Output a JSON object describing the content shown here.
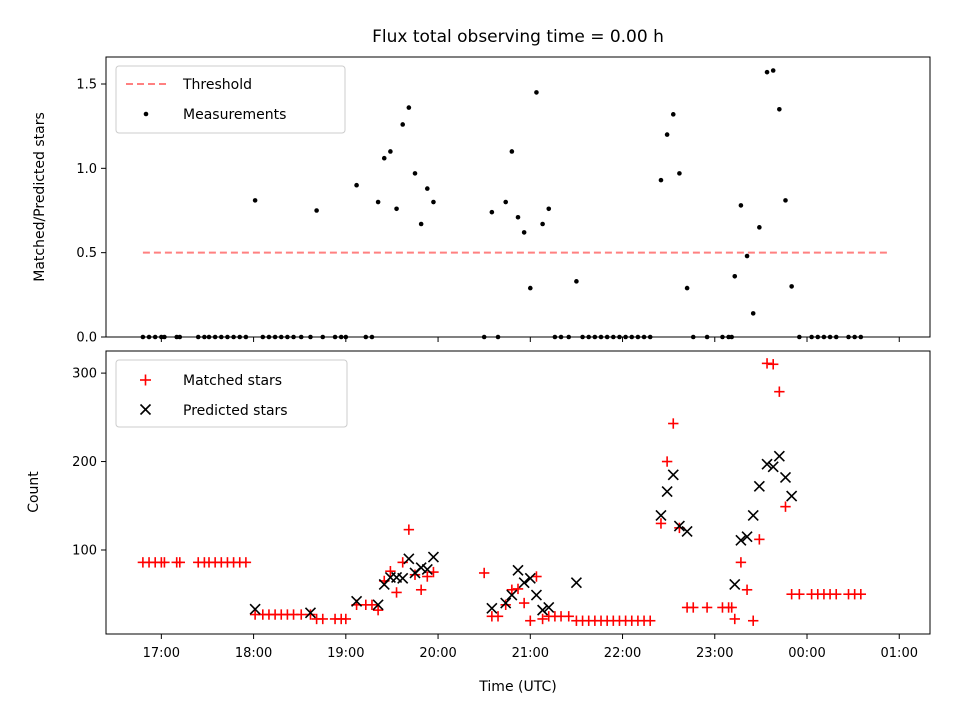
{
  "chart_data": [
    {
      "type": "scatter",
      "title": "Flux total observing time = 0.00 h",
      "ylabel": "Matched/Predicted stars",
      "xlim": [
        "16:24",
        "01:20"
      ],
      "ylim": [
        0,
        1.66
      ],
      "yticks": [
        0.0,
        0.5,
        1.0,
        1.5
      ],
      "ytick_labels": [
        "0.0",
        "0.5",
        "1.0",
        "1.5"
      ],
      "legend": {
        "position": "upper-left",
        "entries": [
          "Threshold",
          "Measurements"
        ]
      },
      "threshold": {
        "name": "Threshold",
        "y": 0.5,
        "x_start": "16:48",
        "x_end": "00:52",
        "color": "#ff8080"
      },
      "series": [
        {
          "name": "Measurements",
          "color": "#000000",
          "points": [
            [
              "16:48",
              0
            ],
            [
              "16:52",
              0
            ],
            [
              "16:56",
              0
            ],
            [
              "17:00",
              0
            ],
            [
              "17:02",
              0
            ],
            [
              "17:10",
              0
            ],
            [
              "17:12",
              0
            ],
            [
              "17:24",
              0
            ],
            [
              "17:28",
              0
            ],
            [
              "17:31",
              0
            ],
            [
              "17:35",
              0
            ],
            [
              "17:39",
              0
            ],
            [
              "17:43",
              0
            ],
            [
              "17:47",
              0
            ],
            [
              "17:51",
              0
            ],
            [
              "17:55",
              0
            ],
            [
              "18:01",
              0.81
            ],
            [
              "18:06",
              0
            ],
            [
              "18:10",
              0
            ],
            [
              "18:14",
              0
            ],
            [
              "18:18",
              0
            ],
            [
              "18:22",
              0
            ],
            [
              "18:26",
              0
            ],
            [
              "18:31",
              0
            ],
            [
              "18:37",
              0
            ],
            [
              "18:41",
              0.75
            ],
            [
              "18:45",
              0
            ],
            [
              "18:53",
              0
            ],
            [
              "18:57",
              0
            ],
            [
              "19:00",
              0
            ],
            [
              "19:07",
              0.9
            ],
            [
              "19:13",
              0
            ],
            [
              "19:17",
              0
            ],
            [
              "19:21",
              0.8
            ],
            [
              "19:25",
              1.06
            ],
            [
              "19:29",
              1.1
            ],
            [
              "19:33",
              0.76
            ],
            [
              "19:37",
              1.26
            ],
            [
              "19:41",
              1.36
            ],
            [
              "19:45",
              0.97
            ],
            [
              "19:49",
              0.67
            ],
            [
              "19:53",
              0.88
            ],
            [
              "19:57",
              0.8
            ],
            [
              "20:30",
              0
            ],
            [
              "20:35",
              0.74
            ],
            [
              "20:39",
              0
            ],
            [
              "20:44",
              0.8
            ],
            [
              "20:48",
              1.1
            ],
            [
              "20:52",
              0.71
            ],
            [
              "20:56",
              0.62
            ],
            [
              "21:00",
              0.29
            ],
            [
              "21:04",
              1.45
            ],
            [
              "21:08",
              0.67
            ],
            [
              "21:12",
              0.76
            ],
            [
              "21:16",
              0
            ],
            [
              "21:20",
              0
            ],
            [
              "21:25",
              0
            ],
            [
              "21:30",
              0.33
            ],
            [
              "21:34",
              0
            ],
            [
              "21:38",
              0
            ],
            [
              "21:42",
              0
            ],
            [
              "21:46",
              0
            ],
            [
              "21:50",
              0
            ],
            [
              "21:54",
              0
            ],
            [
              "21:58",
              0
            ],
            [
              "22:02",
              0
            ],
            [
              "22:06",
              0
            ],
            [
              "22:10",
              0
            ],
            [
              "22:14",
              0
            ],
            [
              "22:18",
              0
            ],
            [
              "22:25",
              0.93
            ],
            [
              "22:29",
              1.2
            ],
            [
              "22:33",
              1.32
            ],
            [
              "22:37",
              0.97
            ],
            [
              "22:42",
              0.29
            ],
            [
              "22:46",
              0
            ],
            [
              "22:55",
              0
            ],
            [
              "23:05",
              0
            ],
            [
              "23:09",
              0
            ],
            [
              "23:11",
              0
            ],
            [
              "23:13",
              0.36
            ],
            [
              "23:17",
              0.78
            ],
            [
              "23:21",
              0.48
            ],
            [
              "23:25",
              0.14
            ],
            [
              "23:29",
              0.65
            ],
            [
              "23:34",
              1.57
            ],
            [
              "23:38",
              1.58
            ],
            [
              "23:42",
              1.35
            ],
            [
              "23:46",
              0.81
            ],
            [
              "23:50",
              0.3
            ],
            [
              "23:55",
              0
            ],
            [
              "00:03",
              0
            ],
            [
              "00:07",
              0
            ],
            [
              "00:11",
              0
            ],
            [
              "00:15",
              0
            ],
            [
              "00:19",
              0
            ],
            [
              "00:27",
              0
            ],
            [
              "00:31",
              0
            ],
            [
              "00:35",
              0
            ]
          ]
        }
      ]
    },
    {
      "type": "scatter",
      "xlabel": "Time (UTC)",
      "ylabel": "Count",
      "xlim": [
        "16:24",
        "01:20"
      ],
      "ylim": [
        5,
        325
      ],
      "xticks": [
        "17:00",
        "18:00",
        "19:00",
        "20:00",
        "21:00",
        "22:00",
        "23:00",
        "00:00",
        "01:00"
      ],
      "yticks": [
        100,
        200,
        300
      ],
      "ytick_labels": [
        "100",
        "200",
        "300"
      ],
      "legend": {
        "position": "upper-left",
        "entries": [
          "Matched stars",
          "Predicted stars"
        ]
      },
      "series": [
        {
          "name": "Matched stars",
          "marker": "+",
          "color": "#ff0000",
          "points": [
            [
              "16:48",
              86
            ],
            [
              "16:52",
              86
            ],
            [
              "16:56",
              86
            ],
            [
              "17:00",
              86
            ],
            [
              "17:02",
              86
            ],
            [
              "17:10",
              86
            ],
            [
              "17:12",
              86
            ],
            [
              "17:24",
              86
            ],
            [
              "17:28",
              86
            ],
            [
              "17:31",
              86
            ],
            [
              "17:35",
              86
            ],
            [
              "17:39",
              86
            ],
            [
              "17:43",
              86
            ],
            [
              "17:47",
              86
            ],
            [
              "17:51",
              86
            ],
            [
              "17:55",
              86
            ],
            [
              "18:01",
              27
            ],
            [
              "18:06",
              27
            ],
            [
              "18:10",
              27
            ],
            [
              "18:14",
              27
            ],
            [
              "18:18",
              27
            ],
            [
              "18:22",
              27
            ],
            [
              "18:26",
              27
            ],
            [
              "18:31",
              27
            ],
            [
              "18:37",
              27
            ],
            [
              "18:41",
              22
            ],
            [
              "18:45",
              22
            ],
            [
              "18:53",
              22
            ],
            [
              "18:57",
              22
            ],
            [
              "19:00",
              22
            ],
            [
              "19:07",
              38
            ],
            [
              "19:13",
              38
            ],
            [
              "19:17",
              38
            ],
            [
              "19:21",
              32
            ],
            [
              "19:25",
              65
            ],
            [
              "19:29",
              76
            ],
            [
              "19:33",
              52
            ],
            [
              "19:37",
              86
            ],
            [
              "19:41",
              123
            ],
            [
              "19:45",
              72
            ],
            [
              "19:49",
              55
            ],
            [
              "19:53",
              70
            ],
            [
              "19:57",
              75
            ],
            [
              "20:30",
              74
            ],
            [
              "20:35",
              25
            ],
            [
              "20:39",
              25
            ],
            [
              "20:44",
              38
            ],
            [
              "20:48",
              55
            ],
            [
              "20:52",
              56
            ],
            [
              "20:56",
              40
            ],
            [
              "21:00",
              20
            ],
            [
              "21:04",
              70
            ],
            [
              "21:08",
              22
            ],
            [
              "21:12",
              25
            ],
            [
              "21:16",
              25
            ],
            [
              "21:20",
              25
            ],
            [
              "21:25",
              25
            ],
            [
              "21:30",
              20
            ],
            [
              "21:34",
              20
            ],
            [
              "21:38",
              20
            ],
            [
              "21:42",
              20
            ],
            [
              "21:46",
              20
            ],
            [
              "21:50",
              20
            ],
            [
              "21:54",
              20
            ],
            [
              "21:58",
              20
            ],
            [
              "22:02",
              20
            ],
            [
              "22:06",
              20
            ],
            [
              "22:10",
              20
            ],
            [
              "22:14",
              20
            ],
            [
              "22:18",
              20
            ],
            [
              "22:25",
              130
            ],
            [
              "22:29",
              200
            ],
            [
              "22:33",
              243
            ],
            [
              "22:37",
              125
            ],
            [
              "22:42",
              35
            ],
            [
              "22:46",
              35
            ],
            [
              "22:55",
              35
            ],
            [
              "23:05",
              35
            ],
            [
              "23:09",
              35
            ],
            [
              "23:11",
              35
            ],
            [
              "23:13",
              22
            ],
            [
              "23:17",
              86
            ],
            [
              "23:21",
              55
            ],
            [
              "23:25",
              20
            ],
            [
              "23:29",
              112
            ],
            [
              "23:34",
              311
            ],
            [
              "23:38",
              310
            ],
            [
              "23:42",
              279
            ],
            [
              "23:46",
              149
            ],
            [
              "23:50",
              50
            ],
            [
              "23:55",
              50
            ],
            [
              "00:03",
              50
            ],
            [
              "00:07",
              50
            ],
            [
              "00:11",
              50
            ],
            [
              "00:15",
              50
            ],
            [
              "00:19",
              50
            ],
            [
              "00:27",
              50
            ],
            [
              "00:31",
              50
            ],
            [
              "00:35",
              50
            ]
          ]
        },
        {
          "name": "Predicted stars",
          "marker": "x",
          "color": "#000000",
          "points": [
            [
              "18:01",
              33
            ],
            [
              "18:37",
              29
            ],
            [
              "19:07",
              42
            ],
            [
              "19:21",
              38
            ],
            [
              "19:25",
              61
            ],
            [
              "19:29",
              69
            ],
            [
              "19:33",
              69
            ],
            [
              "19:37",
              68
            ],
            [
              "19:41",
              90
            ],
            [
              "19:45",
              74
            ],
            [
              "19:49",
              80
            ],
            [
              "19:53",
              78
            ],
            [
              "19:57",
              92
            ],
            [
              "20:35",
              34
            ],
            [
              "20:44",
              40
            ],
            [
              "20:48",
              49
            ],
            [
              "20:52",
              77
            ],
            [
              "20:56",
              63
            ],
            [
              "21:00",
              68
            ],
            [
              "21:04",
              49
            ],
            [
              "21:08",
              32
            ],
            [
              "21:12",
              35
            ],
            [
              "21:30",
              63
            ],
            [
              "22:25",
              139
            ],
            [
              "22:29",
              166
            ],
            [
              "22:33",
              185
            ],
            [
              "22:37",
              127
            ],
            [
              "22:42",
              121
            ],
            [
              "23:13",
              61
            ],
            [
              "23:17",
              111
            ],
            [
              "23:21",
              115
            ],
            [
              "23:25",
              139
            ],
            [
              "23:29",
              172
            ],
            [
              "23:34",
              197
            ],
            [
              "23:38",
              194
            ],
            [
              "23:42",
              206
            ],
            [
              "23:46",
              182
            ],
            [
              "23:50",
              161
            ]
          ]
        }
      ]
    }
  ]
}
